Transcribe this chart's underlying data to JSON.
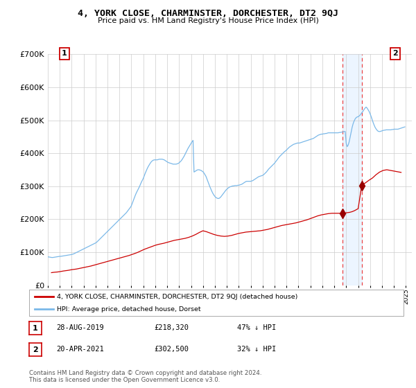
{
  "title": "4, YORK CLOSE, CHARMINSTER, DORCHESTER, DT2 9QJ",
  "subtitle": "Price paid vs. HM Land Registry's House Price Index (HPI)",
  "ylabel_ticks": [
    "£0",
    "£100K",
    "£200K",
    "£300K",
    "£400K",
    "£500K",
    "£600K",
    "£700K"
  ],
  "ytick_values": [
    0,
    100000,
    200000,
    300000,
    400000,
    500000,
    600000,
    700000
  ],
  "ylim": [
    0,
    700000
  ],
  "xlim_start": 1995.0,
  "xlim_end": 2025.5,
  "hpi_color": "#7ab8e8",
  "price_color": "#cc0000",
  "marker_color": "#990000",
  "shade_color": "#ddeeff",
  "dashed_color": "#ee4444",
  "legend1_label": "4, YORK CLOSE, CHARMINSTER, DORCHESTER, DT2 9QJ (detached house)",
  "legend2_label": "HPI: Average price, detached house, Dorset",
  "point1_label": "1",
  "point1_date": "28-AUG-2019",
  "point1_price": "£218,320",
  "point1_note": "47% ↓ HPI",
  "point2_label": "2",
  "point2_date": "20-APR-2021",
  "point2_price": "£302,500",
  "point2_note": "32% ↓ HPI",
  "footer": "Contains HM Land Registry data © Crown copyright and database right 2024.\nThis data is licensed under the Open Government Licence v3.0.",
  "xtick_years": [
    1995,
    1996,
    1997,
    1998,
    1999,
    2000,
    2001,
    2002,
    2003,
    2004,
    2005,
    2006,
    2007,
    2008,
    2009,
    2010,
    2011,
    2012,
    2013,
    2014,
    2015,
    2016,
    2017,
    2018,
    2019,
    2020,
    2021,
    2022,
    2023,
    2024,
    2025
  ],
  "hpi_x": [
    1995.0,
    1995.083,
    1995.167,
    1995.25,
    1995.333,
    1995.417,
    1995.5,
    1995.583,
    1995.667,
    1995.75,
    1995.833,
    1995.917,
    1996.0,
    1996.083,
    1996.167,
    1996.25,
    1996.333,
    1996.417,
    1996.5,
    1996.583,
    1996.667,
    1996.75,
    1996.833,
    1996.917,
    1997.0,
    1997.083,
    1997.167,
    1997.25,
    1997.333,
    1997.417,
    1997.5,
    1997.583,
    1997.667,
    1997.75,
    1997.833,
    1997.917,
    1998.0,
    1998.083,
    1998.167,
    1998.25,
    1998.333,
    1998.417,
    1998.5,
    1998.583,
    1998.667,
    1998.75,
    1998.833,
    1998.917,
    1999.0,
    1999.083,
    1999.167,
    1999.25,
    1999.333,
    1999.417,
    1999.5,
    1999.583,
    1999.667,
    1999.75,
    1999.833,
    1999.917,
    2000.0,
    2000.083,
    2000.167,
    2000.25,
    2000.333,
    2000.417,
    2000.5,
    2000.583,
    2000.667,
    2000.75,
    2000.833,
    2000.917,
    2001.0,
    2001.083,
    2001.167,
    2001.25,
    2001.333,
    2001.417,
    2001.5,
    2001.583,
    2001.667,
    2001.75,
    2001.833,
    2001.917,
    2002.0,
    2002.083,
    2002.167,
    2002.25,
    2002.333,
    2002.417,
    2002.5,
    2002.583,
    2002.667,
    2002.75,
    2002.833,
    2002.917,
    2003.0,
    2003.083,
    2003.167,
    2003.25,
    2003.333,
    2003.417,
    2003.5,
    2003.583,
    2003.667,
    2003.75,
    2003.833,
    2003.917,
    2004.0,
    2004.083,
    2004.167,
    2004.25,
    2004.333,
    2004.417,
    2004.5,
    2004.583,
    2004.667,
    2004.75,
    2004.833,
    2004.917,
    2005.0,
    2005.083,
    2005.167,
    2005.25,
    2005.333,
    2005.417,
    2005.5,
    2005.583,
    2005.667,
    2005.75,
    2005.833,
    2005.917,
    2006.0,
    2006.083,
    2006.167,
    2006.25,
    2006.333,
    2006.417,
    2006.5,
    2006.583,
    2006.667,
    2006.75,
    2006.833,
    2006.917,
    2007.0,
    2007.083,
    2007.167,
    2007.25,
    2007.333,
    2007.417,
    2007.5,
    2007.583,
    2007.667,
    2007.75,
    2007.833,
    2007.917,
    2008.0,
    2008.083,
    2008.167,
    2008.25,
    2008.333,
    2008.417,
    2008.5,
    2008.583,
    2008.667,
    2008.75,
    2008.833,
    2008.917,
    2009.0,
    2009.083,
    2009.167,
    2009.25,
    2009.333,
    2009.417,
    2009.5,
    2009.583,
    2009.667,
    2009.75,
    2009.833,
    2009.917,
    2010.0,
    2010.083,
    2010.167,
    2010.25,
    2010.333,
    2010.417,
    2010.5,
    2010.583,
    2010.667,
    2010.75,
    2010.833,
    2010.917,
    2011.0,
    2011.083,
    2011.167,
    2011.25,
    2011.333,
    2011.417,
    2011.5,
    2011.583,
    2011.667,
    2011.75,
    2011.833,
    2011.917,
    2012.0,
    2012.083,
    2012.167,
    2012.25,
    2012.333,
    2012.417,
    2012.5,
    2012.583,
    2012.667,
    2012.75,
    2012.833,
    2012.917,
    2013.0,
    2013.083,
    2013.167,
    2013.25,
    2013.333,
    2013.417,
    2013.5,
    2013.583,
    2013.667,
    2013.75,
    2013.833,
    2013.917,
    2014.0,
    2014.083,
    2014.167,
    2014.25,
    2014.333,
    2014.417,
    2014.5,
    2014.583,
    2014.667,
    2014.75,
    2014.833,
    2014.917,
    2015.0,
    2015.083,
    2015.167,
    2015.25,
    2015.333,
    2015.417,
    2015.5,
    2015.583,
    2015.667,
    2015.75,
    2015.833,
    2015.917,
    2016.0,
    2016.083,
    2016.167,
    2016.25,
    2016.333,
    2016.417,
    2016.5,
    2016.583,
    2016.667,
    2016.75,
    2016.833,
    2016.917,
    2017.0,
    2017.083,
    2017.167,
    2017.25,
    2017.333,
    2017.417,
    2017.5,
    2017.583,
    2017.667,
    2017.75,
    2017.833,
    2017.917,
    2018.0,
    2018.083,
    2018.167,
    2018.25,
    2018.333,
    2018.417,
    2018.5,
    2018.583,
    2018.667,
    2018.75,
    2018.833,
    2018.917,
    2019.0,
    2019.083,
    2019.167,
    2019.25,
    2019.333,
    2019.417,
    2019.5,
    2019.583,
    2019.667,
    2019.75,
    2019.833,
    2019.917,
    2020.0,
    2020.083,
    2020.167,
    2020.25,
    2020.333,
    2020.417,
    2020.5,
    2020.583,
    2020.667,
    2020.75,
    2020.833,
    2020.917,
    2021.0,
    2021.083,
    2021.167,
    2021.25,
    2021.333,
    2021.417,
    2021.5,
    2021.583,
    2021.667,
    2021.75,
    2021.833,
    2021.917,
    2022.0,
    2022.083,
    2022.167,
    2022.25,
    2022.333,
    2022.417,
    2022.5,
    2022.583,
    2022.667,
    2022.75,
    2022.833,
    2022.917,
    2023.0,
    2023.083,
    2023.167,
    2023.25,
    2023.333,
    2023.417,
    2023.5,
    2023.583,
    2023.667,
    2023.75,
    2023.833,
    2023.917,
    2024.0,
    2024.083,
    2024.167,
    2024.25,
    2024.333,
    2024.417,
    2024.5,
    2024.583,
    2024.667,
    2024.75,
    2024.833,
    2024.917
  ],
  "hpi_y": [
    86000,
    85500,
    85000,
    84500,
    84000,
    84000,
    84500,
    85000,
    85500,
    86000,
    86500,
    87000,
    87500,
    87500,
    88000,
    88500,
    89000,
    89500,
    90000,
    90500,
    91000,
    91500,
    92000,
    92500,
    93000,
    94000,
    95000,
    96500,
    98000,
    99500,
    101000,
    102500,
    104000,
    105500,
    107000,
    108500,
    110000,
    111500,
    113000,
    114500,
    116000,
    117500,
    119000,
    120500,
    122000,
    123500,
    125000,
    126500,
    128000,
    130000,
    133000,
    136000,
    139000,
    142000,
    145000,
    148000,
    151000,
    154000,
    157000,
    160000,
    163000,
    166000,
    169000,
    172000,
    175000,
    178000,
    181000,
    184000,
    187000,
    190000,
    193000,
    196000,
    199000,
    202000,
    205000,
    208000,
    211000,
    214000,
    217000,
    220000,
    224000,
    228000,
    232000,
    236000,
    241000,
    249000,
    257000,
    265000,
    273000,
    280000,
    286000,
    292000,
    298000,
    305000,
    312000,
    318000,
    324000,
    332000,
    340000,
    347000,
    354000,
    360000,
    365000,
    370000,
    374000,
    377000,
    379000,
    380000,
    380000,
    380000,
    380000,
    381000,
    382000,
    382000,
    382000,
    382000,
    381000,
    380000,
    378000,
    376000,
    374000,
    372000,
    371000,
    370000,
    369000,
    368000,
    367000,
    367000,
    367000,
    367000,
    368000,
    369000,
    371000,
    374000,
    377000,
    381000,
    386000,
    391000,
    397000,
    403000,
    409000,
    415000,
    420000,
    425000,
    430000,
    435000,
    439000,
    343000,
    345000,
    347000,
    349000,
    350000,
    350000,
    349000,
    348000,
    346000,
    344000,
    340000,
    335000,
    330000,
    322000,
    314000,
    306000,
    298000,
    291000,
    284000,
    278000,
    273000,
    269000,
    266000,
    264000,
    263000,
    263000,
    265000,
    268000,
    272000,
    276000,
    280000,
    284000,
    288000,
    291000,
    294000,
    296000,
    298000,
    299000,
    300000,
    301000,
    301000,
    302000,
    302000,
    302000,
    303000,
    303000,
    304000,
    305000,
    306000,
    308000,
    310000,
    312000,
    314000,
    315000,
    315000,
    315000,
    315000,
    315000,
    316000,
    317000,
    319000,
    321000,
    323000,
    325000,
    327000,
    329000,
    330000,
    331000,
    332000,
    333000,
    335000,
    338000,
    341000,
    344000,
    348000,
    352000,
    355000,
    358000,
    361000,
    364000,
    367000,
    370000,
    374000,
    378000,
    382000,
    386000,
    390000,
    393000,
    396000,
    399000,
    402000,
    405000,
    407000,
    410000,
    413000,
    416000,
    419000,
    421000,
    423000,
    425000,
    427000,
    428000,
    429000,
    430000,
    431000,
    431000,
    431000,
    432000,
    433000,
    434000,
    435000,
    436000,
    437000,
    438000,
    439000,
    440000,
    441000,
    442000,
    443000,
    444000,
    445000,
    447000,
    449000,
    451000,
    453000,
    455000,
    456000,
    457000,
    458000,
    458000,
    459000,
    459000,
    460000,
    460000,
    461000,
    462000,
    462000,
    462000,
    462000,
    462000,
    462000,
    462000,
    462000,
    462000,
    462000,
    462000,
    463000,
    463000,
    464000,
    464000,
    465000,
    466000,
    466000,
    430000,
    420000,
    425000,
    435000,
    450000,
    465000,
    479000,
    490000,
    498000,
    504000,
    508000,
    510000,
    511000,
    513000,
    516000,
    520000,
    524000,
    528000,
    533000,
    537000,
    540000,
    537000,
    532000,
    527000,
    520000,
    512000,
    503000,
    494000,
    486000,
    479000,
    474000,
    470000,
    467000,
    466000,
    466000,
    467000,
    468000,
    469000,
    470000,
    470000,
    471000,
    471000,
    471000,
    471000,
    471000,
    471000,
    472000,
    472000,
    473000,
    473000,
    473000,
    473000,
    473000,
    474000,
    475000,
    476000,
    477000,
    478000,
    479000,
    480000
  ],
  "price_x": [
    1995.3,
    1995.5,
    1995.8,
    1996.0,
    1996.3,
    1996.7,
    1997.0,
    1997.4,
    1997.8,
    1998.2,
    1998.6,
    1999.0,
    1999.4,
    1999.8,
    2000.2,
    2000.6,
    2001.0,
    2001.4,
    2001.8,
    2002.2,
    2002.5,
    2002.8,
    2003.1,
    2003.4,
    2003.7,
    2004.0,
    2004.3,
    2004.7,
    2005.0,
    2005.3,
    2005.6,
    2005.9,
    2006.2,
    2006.5,
    2006.8,
    2007.1,
    2007.4,
    2007.7,
    2008.0,
    2008.3,
    2008.6,
    2008.9,
    2009.2,
    2009.5,
    2009.8,
    2010.1,
    2010.4,
    2010.7,
    2011.0,
    2011.3,
    2011.6,
    2011.9,
    2012.2,
    2012.5,
    2012.8,
    2013.1,
    2013.4,
    2013.7,
    2014.0,
    2014.3,
    2014.6,
    2014.9,
    2015.2,
    2015.5,
    2015.8,
    2016.1,
    2016.4,
    2016.7,
    2017.0,
    2017.3,
    2017.6,
    2017.9,
    2018.2,
    2018.5,
    2018.8,
    2019.0,
    2019.3,
    2019.5,
    2019.67,
    2019.9,
    2020.1,
    2020.3,
    2020.5,
    2020.7,
    2021.0,
    2021.3,
    2021.6,
    2021.9,
    2022.2,
    2022.5,
    2022.8,
    2023.1,
    2023.4,
    2023.7,
    2024.0,
    2024.3,
    2024.6
  ],
  "price_y": [
    38000,
    39000,
    40000,
    41000,
    43000,
    45000,
    47000,
    49000,
    52000,
    55000,
    58000,
    62000,
    66000,
    70000,
    74000,
    78000,
    82000,
    86000,
    90000,
    95000,
    99000,
    104000,
    109000,
    113000,
    117000,
    121000,
    124000,
    127000,
    130000,
    133000,
    136000,
    138000,
    140000,
    142000,
    145000,
    149000,
    154000,
    160000,
    165000,
    162000,
    158000,
    154000,
    151000,
    149000,
    148000,
    149000,
    151000,
    154000,
    157000,
    159000,
    161000,
    162000,
    163000,
    164000,
    165000,
    167000,
    169000,
    172000,
    175000,
    178000,
    181000,
    183000,
    185000,
    187000,
    189000,
    192000,
    195000,
    198000,
    202000,
    206000,
    210000,
    213000,
    215000,
    217000,
    218000,
    218000,
    218000,
    218000,
    218320,
    219000,
    220000,
    221000,
    223000,
    226000,
    232000,
    302500,
    310000,
    318000,
    325000,
    335000,
    343000,
    348000,
    350000,
    348000,
    346000,
    344000,
    342000
  ],
  "point1_x": 2019.67,
  "point1_y": 218320,
  "point2_x": 2021.3,
  "point2_y": 302500,
  "shade_x_start": 2019.67,
  "shade_x_end": 2021.3
}
